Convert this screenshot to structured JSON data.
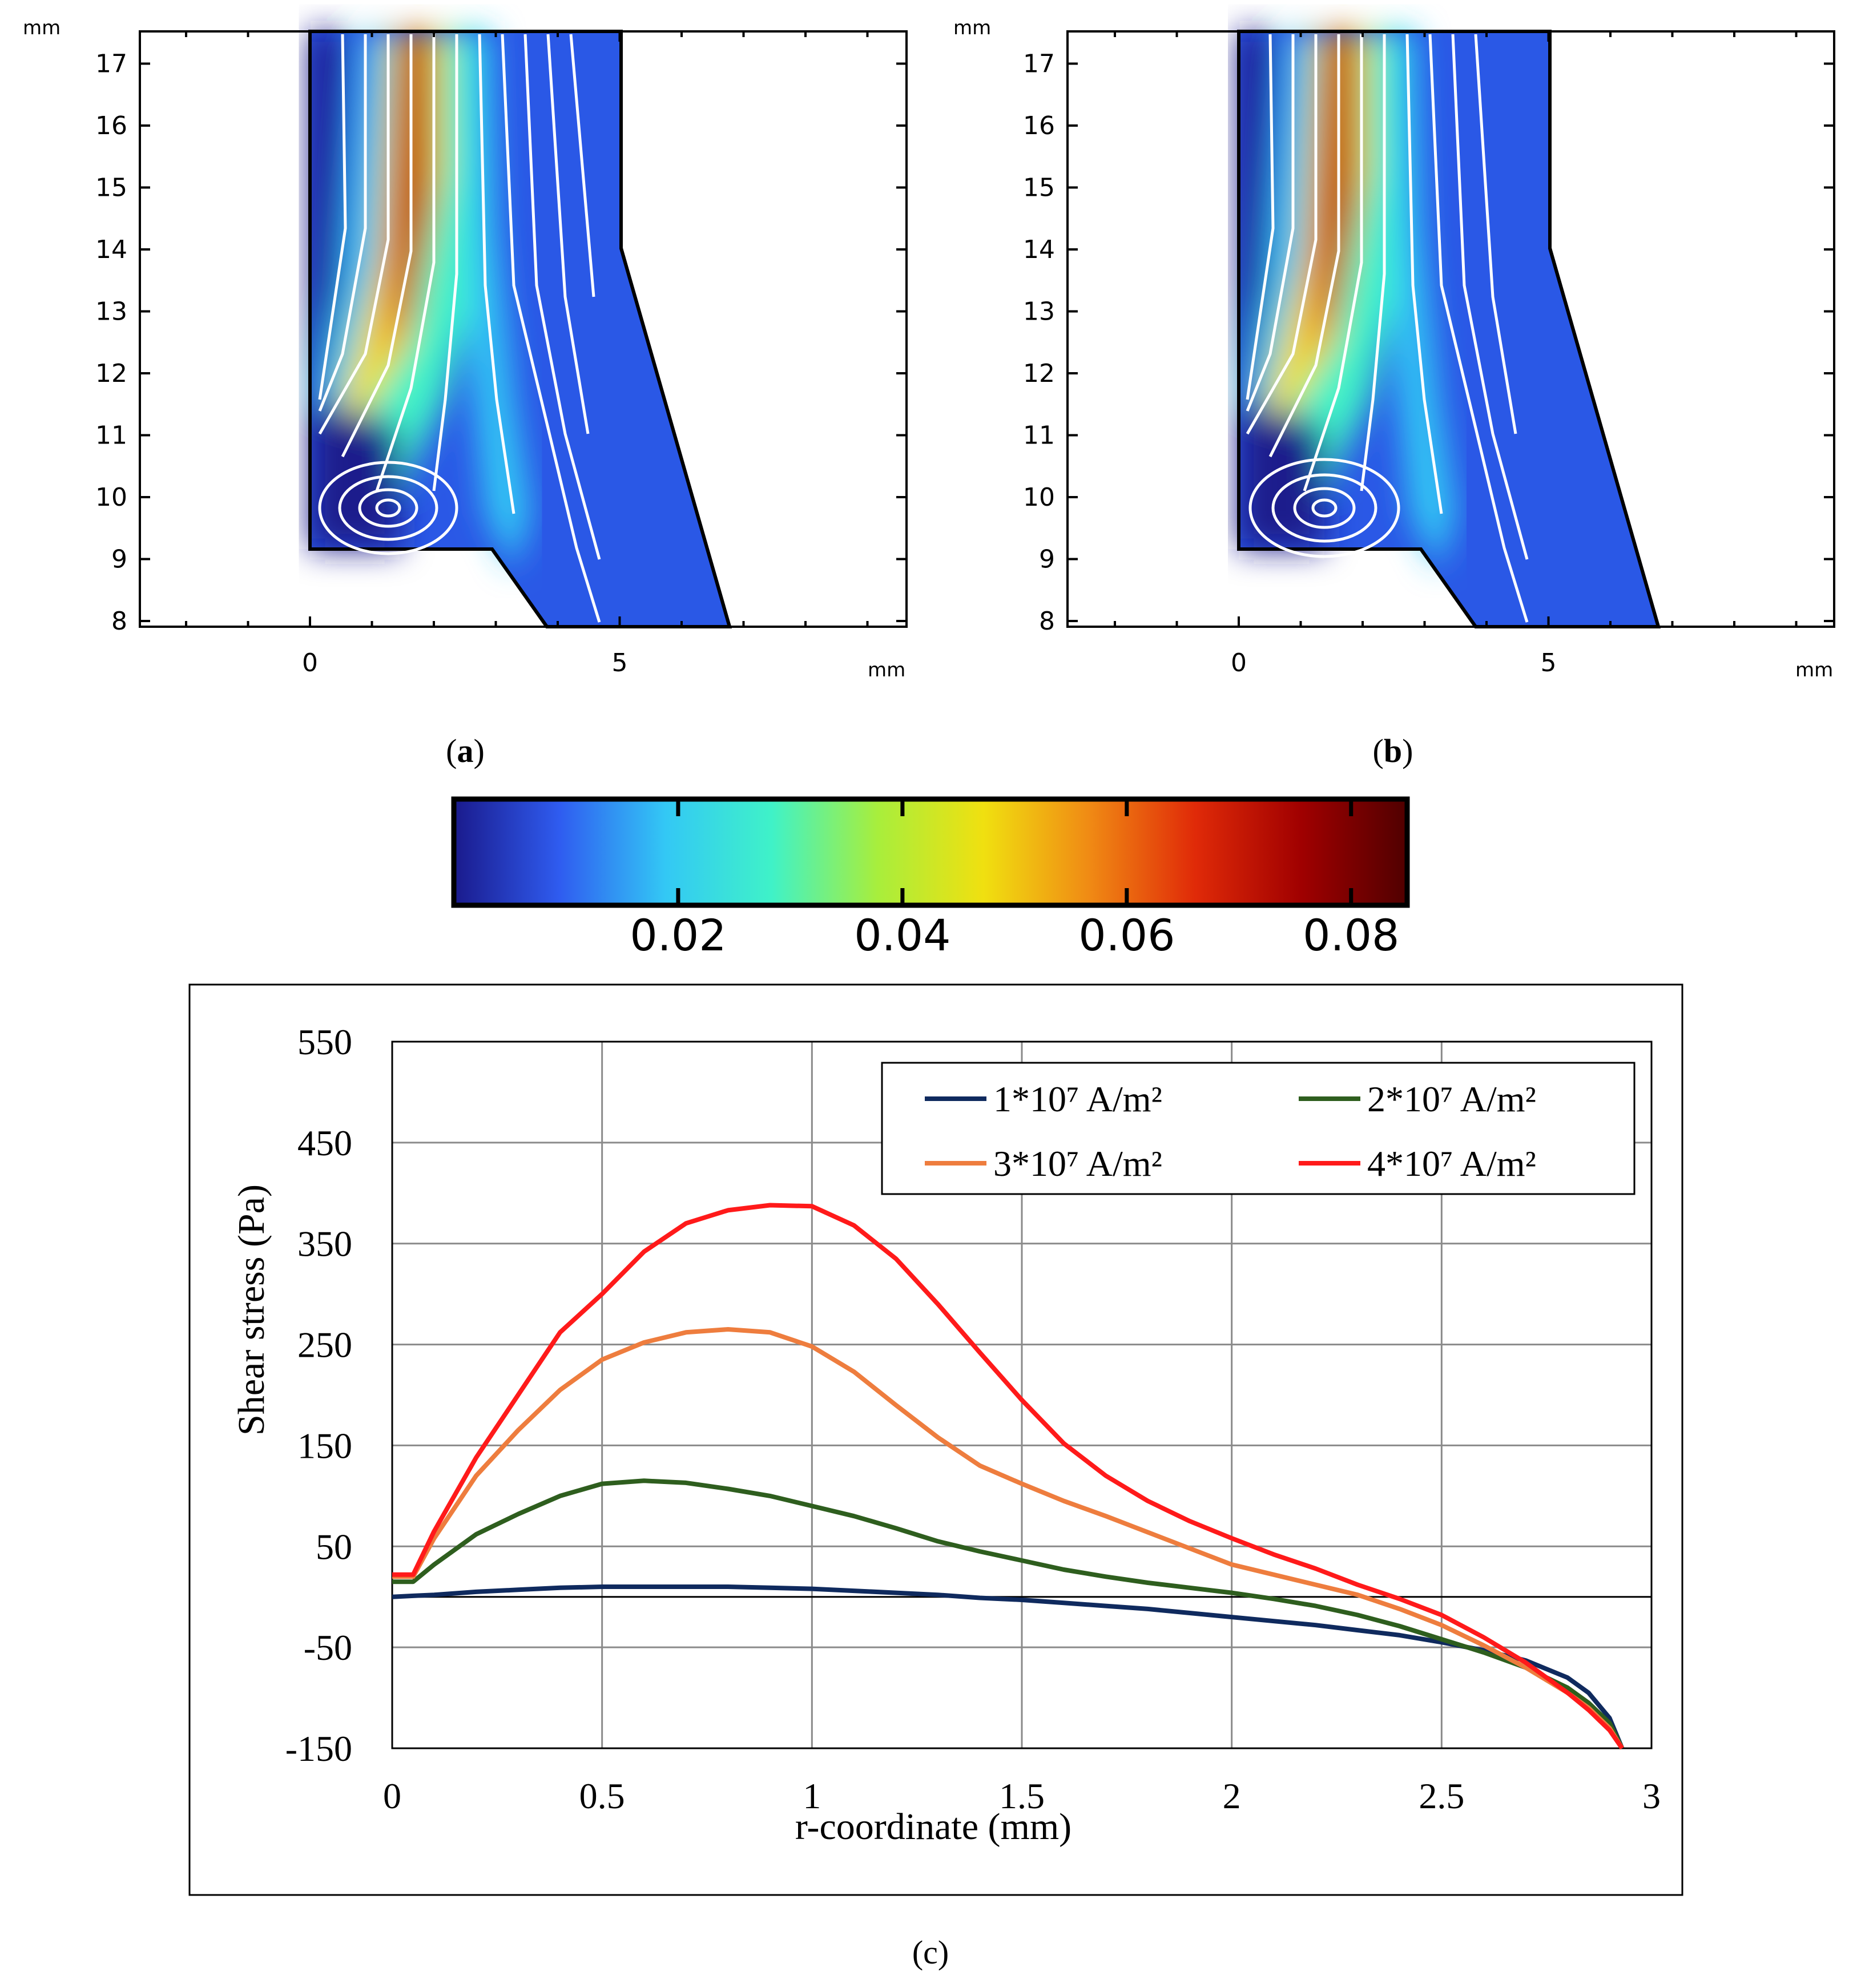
{
  "panels": {
    "a": {
      "label_open": "(",
      "letter": "a",
      "label_close": ")"
    },
    "b": {
      "label_open": "(",
      "letter": "b",
      "label_close": ")"
    },
    "c": {
      "label": "(c)"
    }
  },
  "contour": {
    "x_unit": "mm",
    "y_unit": "mm",
    "x_ticks": [
      "0",
      "5"
    ],
    "y_ticks": [
      "8",
      "9",
      "10",
      "11",
      "12",
      "13",
      "14",
      "15",
      "16",
      "17"
    ]
  },
  "colorbar": {
    "ticks": [
      "0.02",
      "0.04",
      "0.06",
      "0.08"
    ],
    "range": [
      0,
      0.085
    ],
    "colors": [
      "#1a1a8c",
      "#2f5cf0",
      "#33c8f5",
      "#3ff2c8",
      "#a8ee3c",
      "#f0e010",
      "#f08a14",
      "#e02a08",
      "#a00000",
      "#500000"
    ]
  },
  "chart_data": {
    "type": "line",
    "xlabel": "r-coordinate (mm)",
    "ylabel": "Shear stress (Pa)",
    "xlim": [
      0,
      3
    ],
    "ylim": [
      -150,
      550
    ],
    "x_ticks": [
      "0",
      "0.5",
      "1",
      "1.5",
      "2",
      "2.5",
      "3"
    ],
    "y_ticks": [
      "550",
      "450",
      "350",
      "250",
      "150",
      "50",
      "-50",
      "-150"
    ],
    "grid": true,
    "legend_position": "top-right",
    "x": [
      0,
      0.05,
      0.1,
      0.2,
      0.3,
      0.4,
      0.5,
      0.6,
      0.7,
      0.8,
      0.9,
      1.0,
      1.1,
      1.2,
      1.3,
      1.4,
      1.5,
      1.6,
      1.7,
      1.8,
      1.9,
      2.0,
      2.1,
      2.2,
      2.3,
      2.4,
      2.5,
      2.6,
      2.7,
      2.8,
      2.85,
      2.9,
      2.93
    ],
    "series": [
      {
        "name": "1*10⁷ A/m²",
        "color": "#0f2a5e",
        "values": [
          0,
          1,
          2,
          5,
          7,
          9,
          10,
          10,
          10,
          10,
          9,
          8,
          6,
          4,
          2,
          -1,
          -3,
          -6,
          -9,
          -12,
          -16,
          -20,
          -24,
          -28,
          -33,
          -38,
          -45,
          -53,
          -63,
          -80,
          -95,
          -120,
          -150
        ]
      },
      {
        "name": "2*10⁷ A/m²",
        "color": "#2e5e1e",
        "values": [
          15,
          15,
          32,
          62,
          82,
          100,
          112,
          115,
          113,
          107,
          100,
          90,
          80,
          68,
          55,
          45,
          36,
          27,
          20,
          14,
          9,
          4,
          -2,
          -9,
          -18,
          -29,
          -42,
          -55,
          -70,
          -90,
          -105,
          -125,
          -150
        ]
      },
      {
        "name": "3*10⁷ A/m²",
        "color": "#ee7d3e",
        "values": [
          20,
          20,
          58,
          120,
          165,
          205,
          235,
          252,
          262,
          265,
          262,
          248,
          223,
          190,
          158,
          130,
          112,
          95,
          80,
          64,
          48,
          32,
          22,
          12,
          2,
          -12,
          -28,
          -48,
          -70,
          -95,
          -110,
          -130,
          -150
        ]
      },
      {
        "name": "4*10⁷ A/m²",
        "color": "#ff1a1a",
        "values": [
          22,
          22,
          65,
          138,
          200,
          262,
          300,
          342,
          370,
          383,
          388,
          387,
          368,
          335,
          290,
          242,
          195,
          152,
          120,
          95,
          75,
          58,
          42,
          28,
          12,
          -2,
          -18,
          -40,
          -65,
          -95,
          -112,
          -132,
          -150
        ]
      }
    ]
  }
}
